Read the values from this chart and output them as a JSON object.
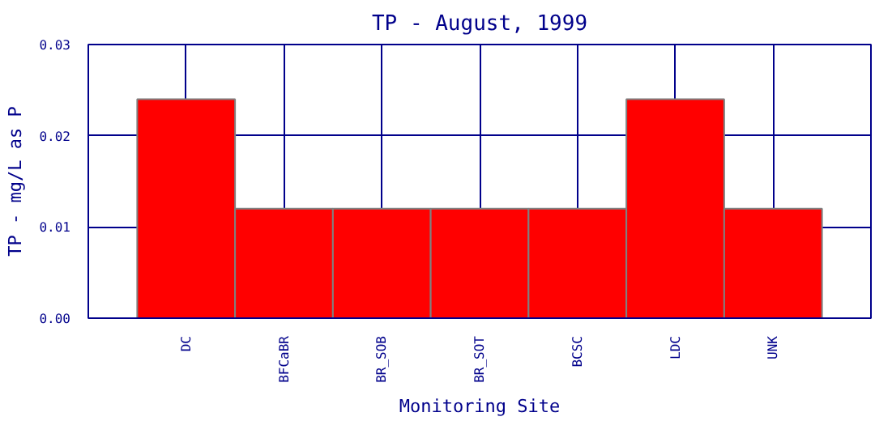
{
  "chart_data": {
    "type": "bar",
    "title": "TP - August, 1999",
    "xlabel": "Monitoring Site",
    "ylabel": "TP - mg/L as P",
    "categories": [
      "DC",
      "BFCaBR",
      "BR_SOB",
      "BR_SOT",
      "BCSC",
      "LDC",
      "UNK"
    ],
    "values": [
      0.024,
      0.012,
      0.012,
      0.012,
      0.012,
      0.024,
      0.012
    ],
    "color": "#ff0000",
    "ylim": [
      0,
      0.03
    ],
    "yticks": [
      {
        "value": 0,
        "label": "0.00"
      },
      {
        "value": 0.01,
        "label": "0.01"
      },
      {
        "value": 0.02,
        "label": "0.02"
      },
      {
        "value": 0.03,
        "label": "0.03"
      }
    ],
    "grid": true
  }
}
